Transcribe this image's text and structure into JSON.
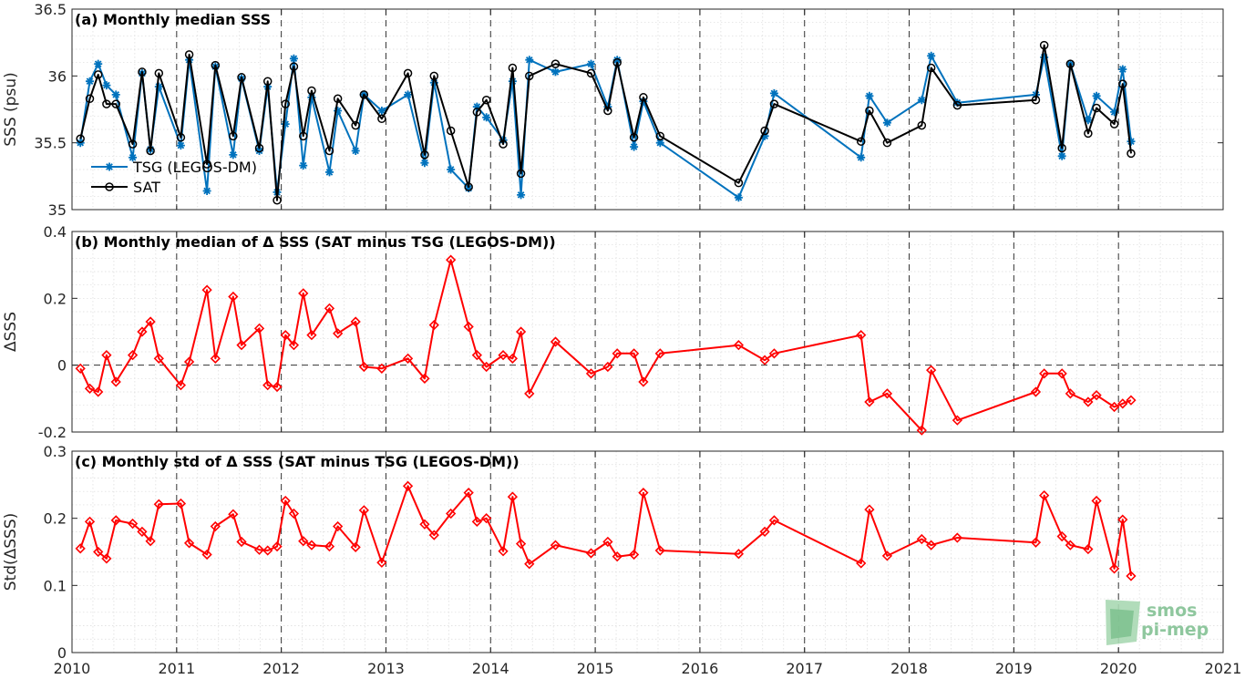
{
  "colors": {
    "tsg": "#0072bd",
    "sat": "#000000",
    "delta": "#ff0000"
  },
  "logo": {
    "line1": "smos",
    "line2": "pi-mep"
  },
  "chart_data": [
    {
      "type": "line",
      "title": "(a) Monthly median SSS",
      "ylabel": "SSS (psu)",
      "xlim": [
        2010,
        2021
      ],
      "ylim": [
        35,
        36.5
      ],
      "yticks": [
        "35",
        "35.5",
        "36",
        "36.5"
      ],
      "xticks": [
        "2010",
        "2011",
        "2012",
        "2013",
        "2014",
        "2015",
        "2016",
        "2017",
        "2018",
        "2019",
        "2020",
        "2021"
      ],
      "legend": "bottom-left",
      "series": [
        {
          "name": "TSG (LEGOS-DM)",
          "key": "tsg",
          "marker": "star",
          "x": [
            2010.08,
            2010.17,
            2010.25,
            2010.33,
            2010.42,
            2010.58,
            2010.67,
            2010.75,
            2010.83,
            2011.04,
            2011.12,
            2011.29,
            2011.37,
            2011.54,
            2011.62,
            2011.79,
            2011.87,
            2011.96,
            2012.04,
            2012.12,
            2012.21,
            2012.29,
            2012.46,
            2012.54,
            2012.71,
            2012.79,
            2012.96,
            2013.21,
            2013.37,
            2013.46,
            2013.62,
            2013.79,
            2013.87,
            2013.96,
            2014.12,
            2014.21,
            2014.29,
            2014.37,
            2014.62,
            2014.96,
            2015.12,
            2015.21,
            2015.37,
            2015.46,
            2015.62,
            2016.37,
            2016.62,
            2016.71,
            2017.54,
            2017.62,
            2017.79,
            2018.12,
            2018.21,
            2018.46,
            2019.21,
            2019.29,
            2019.46,
            2019.54,
            2019.71,
            2019.79,
            2019.96,
            2020.04,
            2020.12
          ],
          "y": [
            35.5,
            35.96,
            36.09,
            35.93,
            35.86,
            35.39,
            36.02,
            35.45,
            35.92,
            35.48,
            36.12,
            35.14,
            36.07,
            35.41,
            35.98,
            35.44,
            35.92,
            35.13,
            35.64,
            36.13,
            35.33,
            35.84,
            35.28,
            35.74,
            35.44,
            35.86,
            35.74,
            35.86,
            35.35,
            35.95,
            35.3,
            35.16,
            35.77,
            35.69,
            35.52,
            35.96,
            35.11,
            36.12,
            36.03,
            36.09,
            35.77,
            36.12,
            35.47,
            35.81,
            35.5,
            35.09,
            35.55,
            35.87,
            35.39,
            35.85,
            35.65,
            35.82,
            36.15,
            35.8,
            35.86,
            36.14,
            35.4,
            36.09,
            35.67,
            35.85,
            35.73,
            36.05,
            35.51
          ]
        },
        {
          "name": "SAT",
          "key": "sat",
          "marker": "circle",
          "x": [
            2010.08,
            2010.17,
            2010.25,
            2010.33,
            2010.42,
            2010.58,
            2010.67,
            2010.75,
            2010.83,
            2011.04,
            2011.12,
            2011.29,
            2011.37,
            2011.54,
            2011.62,
            2011.79,
            2011.87,
            2011.96,
            2012.04,
            2012.12,
            2012.21,
            2012.29,
            2012.46,
            2012.54,
            2012.71,
            2012.79,
            2012.96,
            2013.21,
            2013.37,
            2013.46,
            2013.62,
            2013.79,
            2013.87,
            2013.96,
            2014.12,
            2014.21,
            2014.29,
            2014.37,
            2014.62,
            2014.96,
            2015.12,
            2015.21,
            2015.37,
            2015.46,
            2015.62,
            2016.37,
            2016.62,
            2016.71,
            2017.54,
            2017.62,
            2017.79,
            2018.12,
            2018.21,
            2018.46,
            2019.21,
            2019.29,
            2019.46,
            2019.54,
            2019.71,
            2019.79,
            2019.96,
            2020.04,
            2020.12
          ],
          "y": [
            35.53,
            35.83,
            36.01,
            35.79,
            35.79,
            35.49,
            36.03,
            35.44,
            36.02,
            35.54,
            36.16,
            35.34,
            36.08,
            35.55,
            35.99,
            35.46,
            35.96,
            35.07,
            35.79,
            36.07,
            35.55,
            35.89,
            35.44,
            35.83,
            35.63,
            35.86,
            35.68,
            36.02,
            35.41,
            36.0,
            35.59,
            35.17,
            35.73,
            35.82,
            35.49,
            36.06,
            35.27,
            36.0,
            36.09,
            36.02,
            35.74,
            36.1,
            35.54,
            35.84,
            35.55,
            35.2,
            35.59,
            35.79,
            35.51,
            35.74,
            35.5,
            35.63,
            36.06,
            35.78,
            35.82,
            36.23,
            35.46,
            36.09,
            35.57,
            35.76,
            35.64,
            35.94,
            35.42
          ]
        }
      ]
    },
    {
      "type": "line",
      "title": "(b) Monthly median of Δ SSS (SAT minus TSG (LEGOS-DM))",
      "ylabel": "ΔSSS",
      "xlim": [
        2010,
        2021
      ],
      "ylim": [
        -0.2,
        0.4
      ],
      "yticks": [
        "-0.2",
        "0",
        "0.2",
        "0.4"
      ],
      "xticks": [
        "2010",
        "2011",
        "2012",
        "2013",
        "2014",
        "2015",
        "2016",
        "2017",
        "2018",
        "2019",
        "2020",
        "2021"
      ],
      "series": [
        {
          "key": "delta",
          "marker": "diamond",
          "x": [
            2010.08,
            2010.17,
            2010.25,
            2010.33,
            2010.42,
            2010.58,
            2010.67,
            2010.75,
            2010.83,
            2011.04,
            2011.12,
            2011.29,
            2011.37,
            2011.54,
            2011.62,
            2011.79,
            2011.87,
            2011.96,
            2012.04,
            2012.12,
            2012.21,
            2012.29,
            2012.46,
            2012.54,
            2012.71,
            2012.79,
            2012.96,
            2013.21,
            2013.37,
            2013.46,
            2013.62,
            2013.79,
            2013.87,
            2013.96,
            2014.12,
            2014.21,
            2014.29,
            2014.37,
            2014.62,
            2014.96,
            2015.12,
            2015.21,
            2015.37,
            2015.46,
            2015.62,
            2016.37,
            2016.62,
            2016.71,
            2017.54,
            2017.62,
            2017.79,
            2018.12,
            2018.21,
            2018.46,
            2019.21,
            2019.29,
            2019.46,
            2019.54,
            2019.71,
            2019.79,
            2019.96,
            2020.04,
            2020.12
          ],
          "y": [
            -0.01,
            -0.07,
            -0.08,
            0.03,
            -0.05,
            0.03,
            0.1,
            0.13,
            0.02,
            -0.06,
            0.01,
            0.225,
            0.02,
            0.205,
            0.06,
            0.11,
            -0.06,
            -0.065,
            0.09,
            0.06,
            0.215,
            0.09,
            0.17,
            0.095,
            0.13,
            -0.005,
            -0.01,
            0.02,
            -0.04,
            0.12,
            0.315,
            0.115,
            0.03,
            -0.005,
            0.03,
            0.02,
            0.1,
            -0.085,
            0.07,
            -0.025,
            -0.005,
            0.035,
            0.035,
            -0.05,
            0.035,
            0.06,
            0.015,
            0.035,
            0.09,
            -0.11,
            -0.085,
            -0.195,
            -0.015,
            -0.165,
            -0.08,
            -0.025,
            -0.025,
            -0.085,
            -0.11,
            -0.09,
            -0.125,
            -0.115,
            -0.105
          ]
        }
      ]
    },
    {
      "type": "line",
      "title": "(c) Monthly std of Δ SSS (SAT minus TSG (LEGOS-DM))",
      "ylabel": "Std(ΔSSS)",
      "xlim": [
        2010,
        2021
      ],
      "ylim": [
        0,
        0.3
      ],
      "yticks": [
        "0",
        "0.1",
        "0.2",
        "0.3"
      ],
      "xticks": [
        "2010",
        "2011",
        "2012",
        "2013",
        "2014",
        "2015",
        "2016",
        "2017",
        "2018",
        "2019",
        "2020",
        "2021"
      ],
      "series": [
        {
          "key": "delta",
          "marker": "diamond",
          "x": [
            2010.08,
            2010.17,
            2010.25,
            2010.33,
            2010.42,
            2010.58,
            2010.67,
            2010.75,
            2010.83,
            2011.04,
            2011.12,
            2011.29,
            2011.37,
            2011.54,
            2011.62,
            2011.79,
            2011.87,
            2011.96,
            2012.04,
            2012.12,
            2012.21,
            2012.29,
            2012.46,
            2012.54,
            2012.71,
            2012.79,
            2012.96,
            2013.21,
            2013.37,
            2013.46,
            2013.62,
            2013.79,
            2013.87,
            2013.96,
            2014.12,
            2014.21,
            2014.29,
            2014.37,
            2014.62,
            2014.96,
            2015.12,
            2015.21,
            2015.37,
            2015.46,
            2015.62,
            2016.37,
            2016.62,
            2016.71,
            2017.54,
            2017.62,
            2017.79,
            2018.12,
            2018.21,
            2018.46,
            2019.21,
            2019.29,
            2019.46,
            2019.54,
            2019.71,
            2019.79,
            2019.96,
            2020.04,
            2020.12
          ],
          "y": [
            0.155,
            0.195,
            0.15,
            0.14,
            0.197,
            0.192,
            0.18,
            0.166,
            0.221,
            0.222,
            0.163,
            0.146,
            0.188,
            0.206,
            0.165,
            0.153,
            0.152,
            0.158,
            0.226,
            0.207,
            0.166,
            0.16,
            0.158,
            0.188,
            0.157,
            0.212,
            0.134,
            0.248,
            0.191,
            0.175,
            0.207,
            0.238,
            0.195,
            0.2,
            0.151,
            0.232,
            0.162,
            0.132,
            0.16,
            0.148,
            0.165,
            0.143,
            0.146,
            0.238,
            0.152,
            0.147,
            0.18,
            0.197,
            0.133,
            0.213,
            0.144,
            0.169,
            0.16,
            0.171,
            0.164,
            0.234,
            0.173,
            0.16,
            0.154,
            0.226,
            0.125,
            0.198,
            0.114
          ]
        }
      ]
    }
  ]
}
